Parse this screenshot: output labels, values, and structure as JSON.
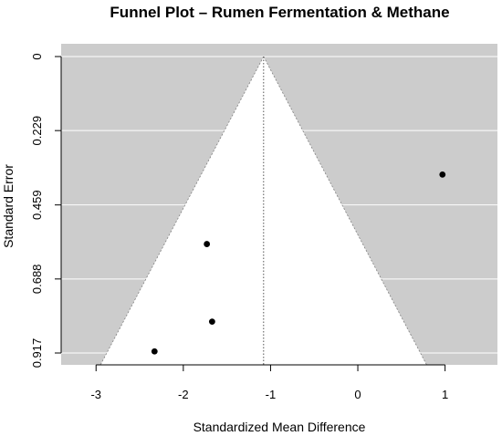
{
  "chart_data": {
    "type": "scatter",
    "title": "Funnel Plot – Rumen Fermentation & Methane",
    "xlabel": "Standardized Mean Difference",
    "ylabel": "Standard Error",
    "xlim": [
      -3.4,
      1.6
    ],
    "ylim": [
      0.917,
      0
    ],
    "y_reversed": true,
    "x_ticks": [
      -3,
      -2,
      -1,
      0,
      1
    ],
    "x_tick_labels": [
      "-3",
      "-2",
      "-1",
      "0",
      "1"
    ],
    "y_ticks": [
      0,
      0.229,
      0.459,
      0.688,
      0.917
    ],
    "y_tick_labels": [
      "0",
      "0.229",
      "0.459",
      "0.688",
      "0.917"
    ],
    "summary_estimate": -1.08,
    "funnel_z": 1.96,
    "background_color": "#cccccc",
    "funnel_color": "#ffffff",
    "point_color": "#000000",
    "points": [
      {
        "x": 0.97,
        "y": 0.365
      },
      {
        "x": -1.73,
        "y": 0.58
      },
      {
        "x": -1.67,
        "y": 0.82
      },
      {
        "x": -2.33,
        "y": 0.912
      }
    ]
  }
}
